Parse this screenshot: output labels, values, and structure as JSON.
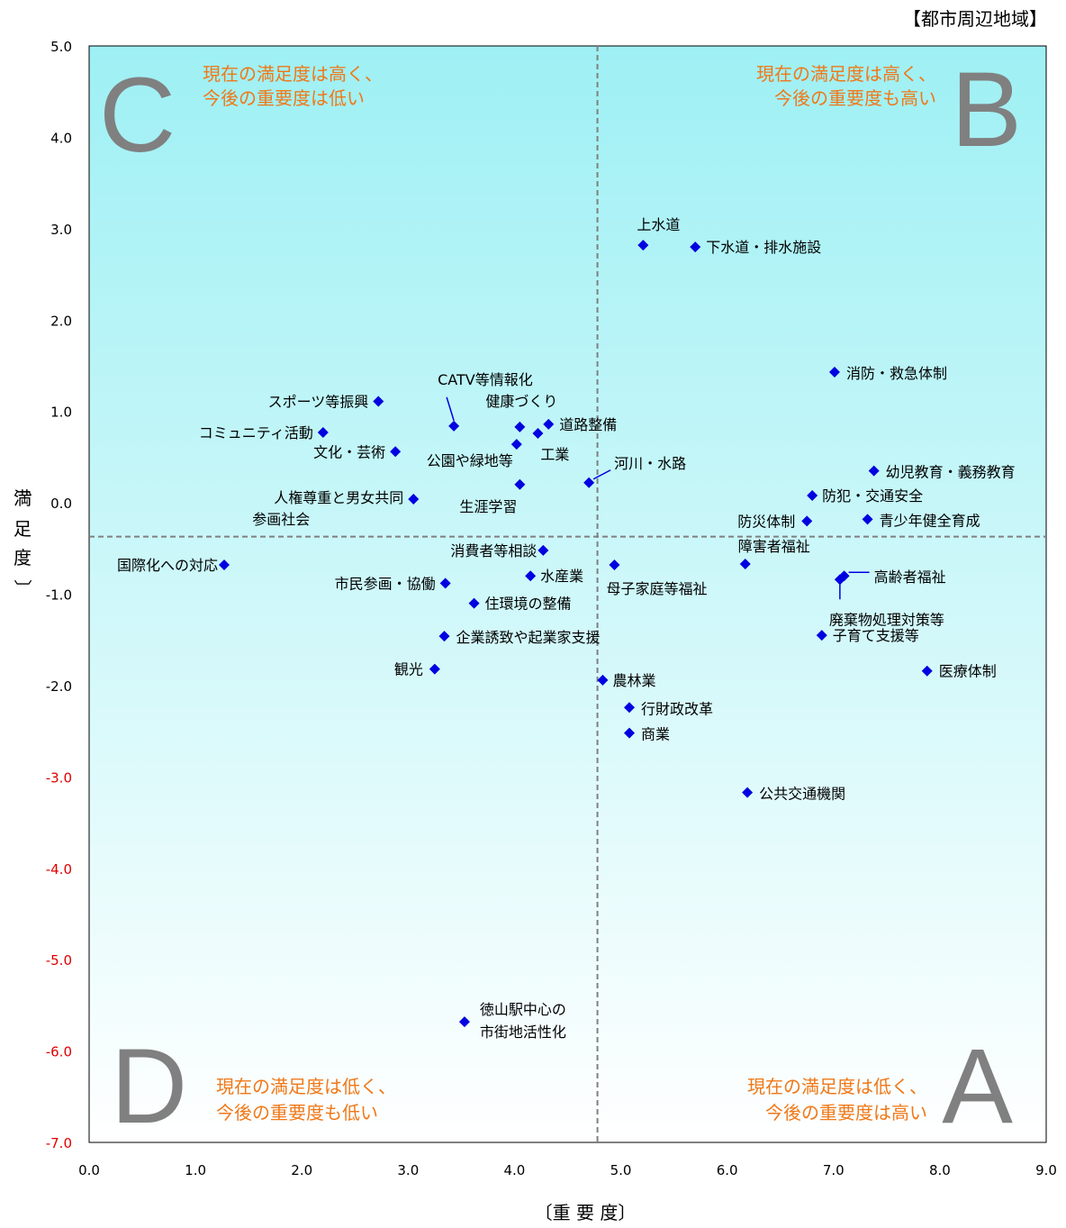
{
  "chart_data": {
    "type": "scatter",
    "title": "",
    "region_label": "【都市周辺地域】",
    "xlabel": "〔重 要 度〕",
    "ylabel_chars": [
      "〔",
      "満",
      "足",
      "度",
      "〕"
    ],
    "xlim": [
      0,
      9
    ],
    "ylim": [
      -7,
      5
    ],
    "x_ticks": [
      "0.0",
      "1.0",
      "2.0",
      "3.0",
      "4.0",
      "5.0",
      "6.0",
      "7.0",
      "8.0",
      "9.0"
    ],
    "y_ticks": [
      {
        "value": 5,
        "label": "5.0",
        "negative": false
      },
      {
        "value": 4,
        "label": "4.0",
        "negative": false
      },
      {
        "value": 3,
        "label": "3.0",
        "negative": false
      },
      {
        "value": 2,
        "label": "2.0",
        "negative": false
      },
      {
        "value": 1,
        "label": "1.0",
        "negative": false
      },
      {
        "value": 0,
        "label": "0.0",
        "negative": false
      },
      {
        "value": -1,
        "label": "-1.0",
        "negative": false
      },
      {
        "value": -2,
        "label": "-2.0",
        "negative": false
      },
      {
        "value": -3,
        "label": "-3.0",
        "negative": true
      },
      {
        "value": -4,
        "label": "-4.0",
        "negative": true
      },
      {
        "value": -5,
        "label": "-5.0",
        "negative": true
      },
      {
        "value": -6,
        "label": "-6.0",
        "negative": true
      },
      {
        "value": -7,
        "label": "-7.0",
        "negative": true
      }
    ],
    "reference_lines": {
      "x": 4.78,
      "y": -0.37
    },
    "grid": false,
    "quadrants": [
      {
        "letter": "C",
        "lines": [
          "現在の満足度は高く、",
          "今後の重要度は低い"
        ]
      },
      {
        "letter": "B",
        "lines": [
          "現在の満足度は高く、",
          "今後の重要度も高い"
        ]
      },
      {
        "letter": "D",
        "lines": [
          "現在の満足度は低く、",
          "今後の重要度も低い"
        ]
      },
      {
        "letter": "A",
        "lines": [
          "現在の満足度は低く、",
          "今後の重要度は高い"
        ]
      }
    ],
    "points": [
      {
        "label": [
          "上水道"
        ],
        "x": 5.21,
        "y": 2.82
      },
      {
        "label": [
          "下水道・排水施設"
        ],
        "x": 5.7,
        "y": 2.8
      },
      {
        "label": [
          "消防・救急体制"
        ],
        "x": 7.01,
        "y": 1.43
      },
      {
        "label": [
          "スポーツ等振興"
        ],
        "x": 2.72,
        "y": 1.11
      },
      {
        "label": [
          "CATV等情報化"
        ],
        "x": 3.43,
        "y": 0.84
      },
      {
        "label": [
          "健康づくり"
        ],
        "x": 4.05,
        "y": 0.83
      },
      {
        "label": [
          "道路整備"
        ],
        "x": 4.32,
        "y": 0.86
      },
      {
        "label": [
          "工業"
        ],
        "x": 4.22,
        "y": 0.76
      },
      {
        "label": [
          "コミュニティ活動"
        ],
        "x": 2.2,
        "y": 0.77
      },
      {
        "label": [
          "文化・芸術"
        ],
        "x": 2.88,
        "y": 0.56
      },
      {
        "label": [
          "公園や緑地等"
        ],
        "x": 4.02,
        "y": 0.64
      },
      {
        "label": [
          "河川・水路"
        ],
        "x": 4.7,
        "y": 0.22
      },
      {
        "label": [
          "生涯学習"
        ],
        "x": 4.05,
        "y": 0.2
      },
      {
        "label": [
          "人権尊重と男女共同",
          "参画社会"
        ],
        "x": 3.05,
        "y": 0.04
      },
      {
        "label": [
          "幼児教育・義務教育"
        ],
        "x": 7.38,
        "y": 0.35
      },
      {
        "label": [
          "防犯・交通安全"
        ],
        "x": 6.8,
        "y": 0.08
      },
      {
        "label": [
          "防災体制"
        ],
        "x": 6.75,
        "y": -0.2
      },
      {
        "label": [
          "青少年健全育成"
        ],
        "x": 7.32,
        "y": -0.18
      },
      {
        "label": [
          "消費者等相談"
        ],
        "x": 4.27,
        "y": -0.52
      },
      {
        "label": [
          "国際化への対応"
        ],
        "x": 1.27,
        "y": -0.68
      },
      {
        "label": [
          "障害者福祉"
        ],
        "x": 6.17,
        "y": -0.67
      },
      {
        "label": [
          "母子家庭等福祉"
        ],
        "x": 4.94,
        "y": -0.68
      },
      {
        "label": [
          "水産業"
        ],
        "x": 4.15,
        "y": -0.8
      },
      {
        "label": [
          "高齢者福祉"
        ],
        "x": 7.1,
        "y": -0.8
      },
      {
        "label": [
          "廃棄物処理対策等"
        ],
        "x": 7.06,
        "y": -0.84
      },
      {
        "label": [
          "市民参画・協働"
        ],
        "x": 3.35,
        "y": -0.88
      },
      {
        "label": [
          "住環境の整備"
        ],
        "x": 3.62,
        "y": -1.1
      },
      {
        "label": [
          "企業誘致や起業家支援"
        ],
        "x": 3.34,
        "y": -1.46
      },
      {
        "label": [
          "子育て支援等"
        ],
        "x": 6.89,
        "y": -1.45
      },
      {
        "label": [
          "観光"
        ],
        "x": 3.25,
        "y": -1.82
      },
      {
        "label": [
          "医療体制"
        ],
        "x": 7.88,
        "y": -1.84
      },
      {
        "label": [
          "農林業"
        ],
        "x": 4.83,
        "y": -1.94
      },
      {
        "label": [
          "行財政改革"
        ],
        "x": 5.08,
        "y": -2.24
      },
      {
        "label": [
          "商業"
        ],
        "x": 5.08,
        "y": -2.52
      },
      {
        "label": [
          "公共交通機関"
        ],
        "x": 6.19,
        "y": -3.17
      },
      {
        "label": [
          "徳山駅中心の",
          "市街地活性化"
        ],
        "x": 3.53,
        "y": -5.68
      }
    ],
    "colors": {
      "plot_bg_top": "#9EF0F4",
      "plot_bg_bottom": "#FFFFFF",
      "marker": "#0000E0",
      "quadrant_text": "#F07818",
      "quadrant_letter": "#808080",
      "negative_tick": "#E00000",
      "reference_line": "#808080"
    }
  }
}
